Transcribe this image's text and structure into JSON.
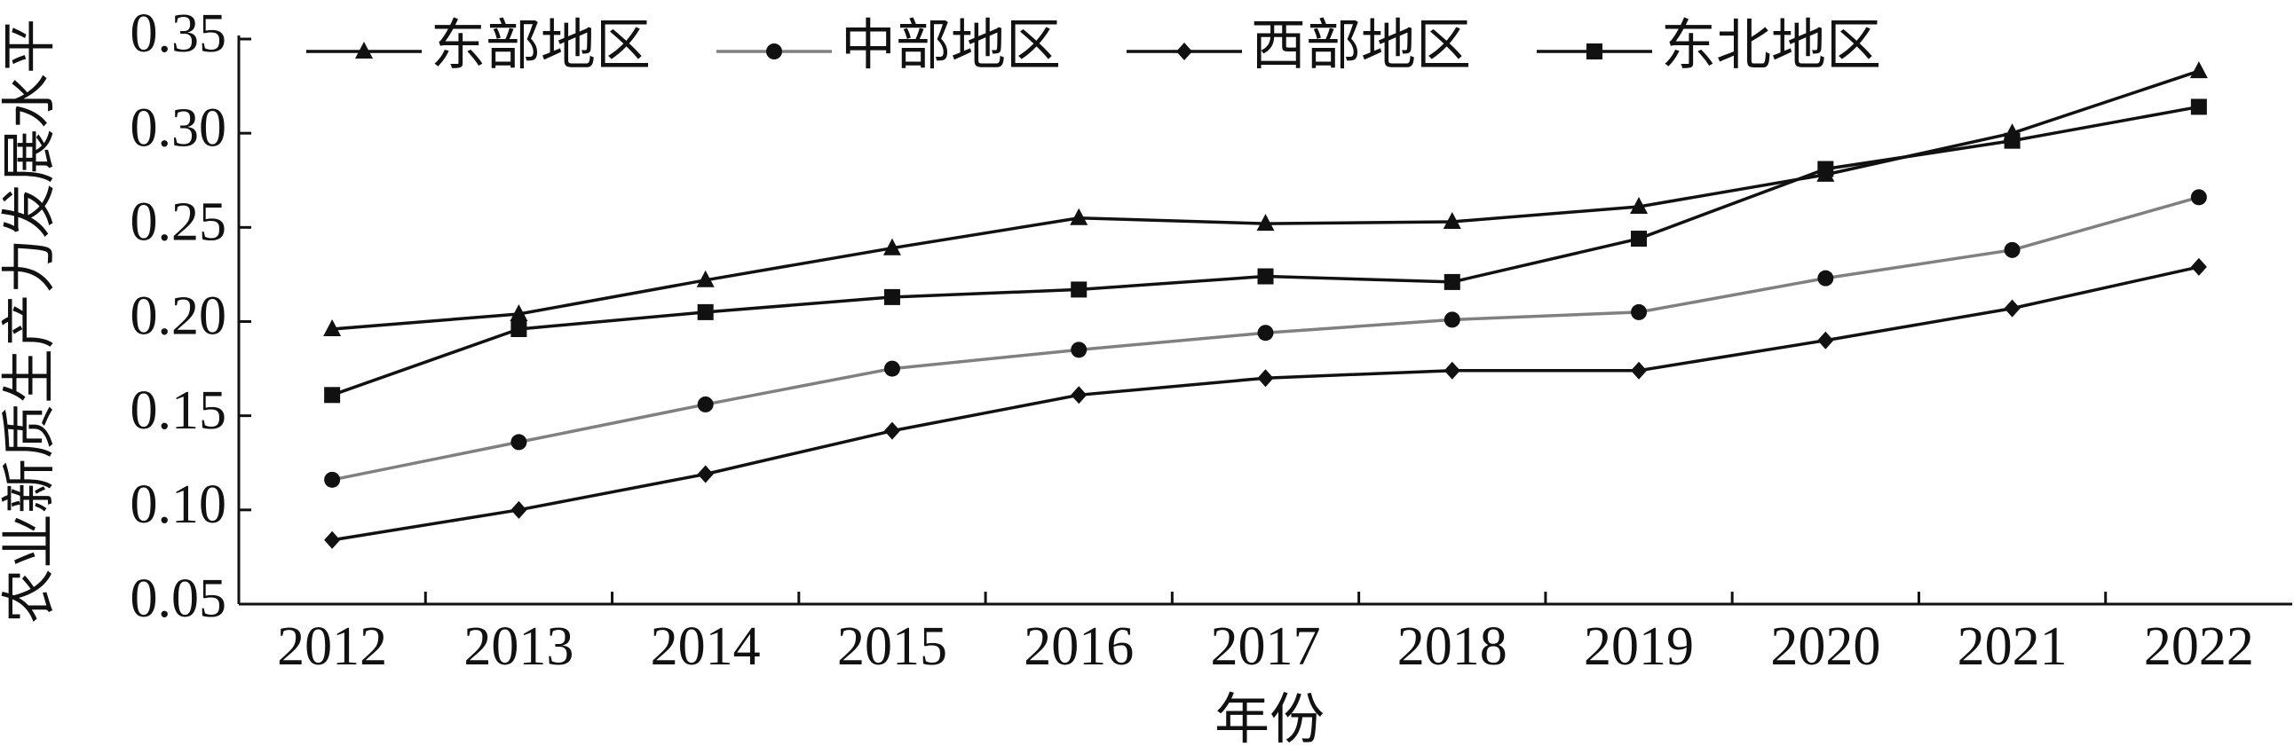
{
  "chart_data": {
    "type": "line",
    "x_label": "年份",
    "y_label": "农业新质生产力发展水平",
    "categories": [
      "2012",
      "2013",
      "2014",
      "2015",
      "2016",
      "2017",
      "2018",
      "2019",
      "2020",
      "2021",
      "2022"
    ],
    "series": [
      {
        "name": "东部地区",
        "color": "#111111",
        "marker": "triangle",
        "values": [
          0.196,
          0.204,
          0.222,
          0.239,
          0.255,
          0.252,
          0.253,
          0.261,
          0.278,
          0.3,
          0.333
        ]
      },
      {
        "name": "中部地区",
        "color": "#808080",
        "marker": "circle",
        "values": [
          0.116,
          0.136,
          0.156,
          0.175,
          0.185,
          0.194,
          0.201,
          0.205,
          0.223,
          0.238,
          0.266
        ]
      },
      {
        "name": "西部地区",
        "color": "#111111",
        "marker": "diamond",
        "values": [
          0.084,
          0.1,
          0.119,
          0.142,
          0.161,
          0.17,
          0.174,
          0.174,
          0.19,
          0.207,
          0.229
        ]
      },
      {
        "name": "东北地区",
        "color": "#111111",
        "marker": "square",
        "values": [
          0.161,
          0.196,
          0.205,
          0.213,
          0.217,
          0.224,
          0.221,
          0.244,
          0.281,
          0.296,
          0.314
        ]
      }
    ],
    "ylim": [
      0.05,
      0.35
    ],
    "yticks": [
      0.05,
      {
        "value": 0.1,
        "label": "0.10"
      },
      0.15,
      {
        "value": 0.2,
        "label": "0.20"
      },
      0.25,
      {
        "value": 0.3,
        "label": "0.30"
      },
      0.35
    ],
    "legend": "top",
    "grid": false
  }
}
